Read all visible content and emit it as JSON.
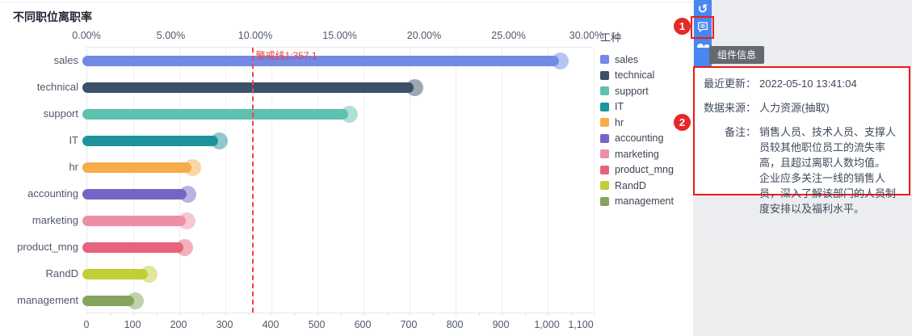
{
  "title": "不同职位离职率",
  "chart_data": {
    "type": "bar",
    "orientation": "horizontal",
    "title": "不同职位离职率",
    "categories": [
      "sales",
      "technical",
      "support",
      "IT",
      "hr",
      "accounting",
      "marketing",
      "product_mng",
      "RandD",
      "management"
    ],
    "values": [
      1014,
      697,
      555,
      273,
      215,
      204,
      203,
      198,
      121,
      91
    ],
    "colors": [
      "#7289e6",
      "#3d5069",
      "#5ec1af",
      "#1f939b",
      "#f6ab4c",
      "#7466c8",
      "#ec8fa6",
      "#e5637b",
      "#c2ce35",
      "#85a45e"
    ],
    "x_axis_top": {
      "ticks": [
        "0.00%",
        "5.00%",
        "10.00%",
        "15.00%",
        "20.00%",
        "25.00%",
        "30.00%"
      ]
    },
    "x_axis_bottom": {
      "ticks": [
        "0",
        "100",
        "200",
        "300",
        "400",
        "500",
        "600",
        "700",
        "800",
        "900",
        "1,000",
        "1,100"
      ],
      "min": 0,
      "max": 1100
    },
    "warning_line": {
      "label": "警戒线1:357.1",
      "value": 357.1,
      "color": "#f24545"
    },
    "grid": true,
    "legend_position": "right"
  },
  "legend": {
    "title": "工种"
  },
  "toolbar": {
    "icons": [
      "undo-icon",
      "comment-icon",
      "image-export-icon"
    ]
  },
  "tooltip": {
    "text": "组件信息"
  },
  "info_panel": {
    "rows": [
      {
        "label": "最近更新：",
        "value": "2022-05-10 13:41:04"
      },
      {
        "label": "数据来源：",
        "value": "人力资源(抽取)"
      },
      {
        "label": "备注：",
        "value": "销售人员、技术人员、支撑人员较其他职位员工的流失率高，且超过离职人数均值。\n企业应多关注一线的销售人员，深入了解该部门的人员制度安排以及福利水平。"
      }
    ]
  },
  "annotations": {
    "step1": "1",
    "step2": "2"
  },
  "ui_colors": {
    "toolbar_blue": "#4a86f0",
    "annotation_red": "#ed1c1c",
    "panel_border_red": "#f01818"
  }
}
